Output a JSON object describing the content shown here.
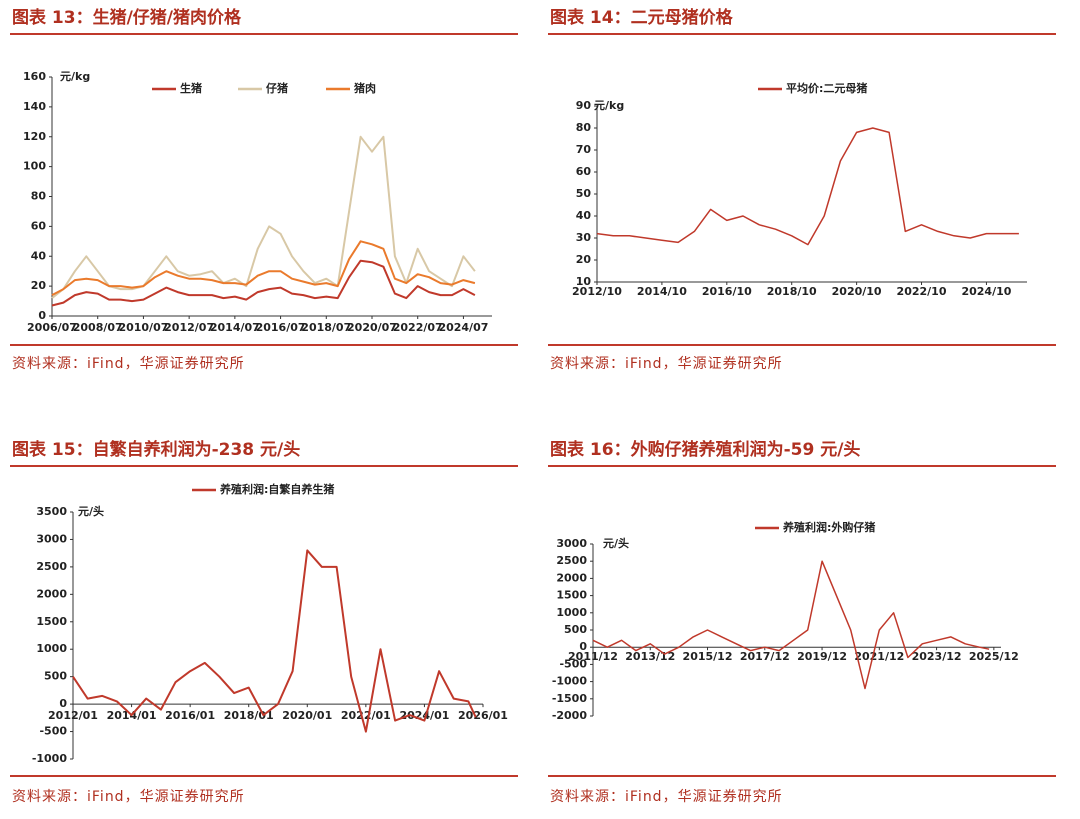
{
  "chart_data": [
    {
      "type": "line",
      "title": "图表 13：生猪/仔猪/猪肉价格",
      "unit": "元/kg",
      "source": "资料来源：iFind，华源证券研究所",
      "x": [
        "2006/07",
        "2007/01",
        "2007/07",
        "2008/01",
        "2008/07",
        "2009/01",
        "2009/07",
        "2010/01",
        "2010/07",
        "2011/01",
        "2011/07",
        "2012/01",
        "2012/07",
        "2013/01",
        "2013/07",
        "2014/01",
        "2014/07",
        "2015/01",
        "2015/07",
        "2016/01",
        "2016/07",
        "2017/01",
        "2017/07",
        "2018/01",
        "2018/07",
        "2019/01",
        "2019/07",
        "2020/01",
        "2020/07",
        "2021/01",
        "2021/07",
        "2022/01",
        "2022/07",
        "2023/01",
        "2023/07",
        "2024/01",
        "2024/07",
        "2025/01"
      ],
      "series": [
        {
          "name": "生猪",
          "color": "#c0392b",
          "values": [
            7,
            9,
            14,
            16,
            15,
            11,
            11,
            10,
            11,
            15,
            19,
            16,
            14,
            14,
            14,
            12,
            13,
            11,
            16,
            18,
            19,
            15,
            14,
            12,
            13,
            12,
            26,
            37,
            36,
            33,
            15,
            12,
            20,
            16,
            14,
            14,
            18,
            14
          ]
        },
        {
          "name": "仔猪",
          "color": "#d8c8a6",
          "values": [
            12,
            18,
            30,
            40,
            30,
            20,
            18,
            18,
            20,
            30,
            40,
            30,
            27,
            28,
            30,
            22,
            25,
            20,
            45,
            60,
            55,
            40,
            30,
            22,
            25,
            20,
            70,
            120,
            110,
            120,
            40,
            22,
            45,
            30,
            25,
            20,
            40,
            30
          ]
        },
        {
          "name": "猪肉",
          "color": "#ea7a2c",
          "values": [
            14,
            18,
            24,
            25,
            24,
            20,
            20,
            19,
            20,
            26,
            30,
            27,
            25,
            25,
            24,
            22,
            22,
            21,
            27,
            30,
            30,
            25,
            23,
            21,
            22,
            20,
            38,
            50,
            48,
            45,
            25,
            22,
            28,
            26,
            22,
            21,
            24,
            22
          ]
        }
      ],
      "xlim": [
        "2006/07",
        "2025/10"
      ],
      "xticks": [
        "2006/07",
        "2008/07",
        "2010/07",
        "2012/07",
        "2014/07",
        "2016/07",
        "2018/07",
        "2020/07",
        "2022/07",
        "2024/07"
      ],
      "ylim": [
        0,
        160
      ],
      "yticks": [
        0,
        20,
        40,
        60,
        80,
        100,
        120,
        140,
        160
      ]
    },
    {
      "type": "line",
      "title": "图表 14：二元母猪价格",
      "unit": "元/kg",
      "source": "资料来源：iFind，华源证券研究所",
      "x": [
        "2012/10",
        "2013/04",
        "2013/10",
        "2014/04",
        "2014/10",
        "2015/04",
        "2015/10",
        "2016/04",
        "2016/10",
        "2017/04",
        "2017/10",
        "2018/04",
        "2018/10",
        "2019/04",
        "2019/10",
        "2020/04",
        "2020/10",
        "2021/04",
        "2021/10",
        "2022/04",
        "2022/10",
        "2023/04",
        "2023/10",
        "2024/04",
        "2024/10",
        "2025/04",
        "2025/10"
      ],
      "series": [
        {
          "name": "平均价:二元母猪",
          "color": "#c0392b",
          "values": [
            32,
            31,
            31,
            30,
            29,
            28,
            33,
            43,
            38,
            40,
            36,
            34,
            31,
            27,
            40,
            65,
            78,
            80,
            78,
            33,
            36,
            33,
            31,
            30,
            32,
            32,
            32
          ]
        }
      ],
      "xlim": [
        "2012/10",
        "2026/01"
      ],
      "xticks": [
        "2012/10",
        "2014/10",
        "2016/10",
        "2018/10",
        "2020/10",
        "2022/10",
        "2024/10"
      ],
      "ylim": [
        10,
        90
      ],
      "yticks": [
        10,
        20,
        30,
        40,
        50,
        60,
        70,
        80,
        90
      ]
    },
    {
      "type": "line",
      "title": "图表 15：自繁自养利润为-238 元/头",
      "unit": "元/头",
      "source": "资料来源：iFind，华源证券研究所",
      "x": [
        "2012/01",
        "2012/07",
        "2013/01",
        "2013/07",
        "2014/01",
        "2014/07",
        "2015/01",
        "2015/07",
        "2016/01",
        "2016/07",
        "2017/01",
        "2017/07",
        "2018/01",
        "2018/07",
        "2019/01",
        "2019/07",
        "2020/01",
        "2020/07",
        "2021/01",
        "2021/07",
        "2022/01",
        "2022/07",
        "2023/01",
        "2023/07",
        "2024/01",
        "2024/07",
        "2025/01",
        "2025/07",
        "2025/10"
      ],
      "series": [
        {
          "name": "养殖利润:自繁自养生猪",
          "color": "#c0392b",
          "values": [
            500,
            100,
            150,
            50,
            -200,
            100,
            -100,
            400,
            600,
            750,
            500,
            200,
            300,
            -200,
            0,
            600,
            2800,
            2500,
            2500,
            500,
            -500,
            1000,
            -300,
            -200,
            -300,
            600,
            100,
            50,
            -238
          ]
        }
      ],
      "xlim": [
        "2012/01",
        "2026/01"
      ],
      "xticks": [
        "2012/01",
        "2014/01",
        "2016/01",
        "2018/01",
        "2020/01",
        "2022/01",
        "2024/01",
        "2026/01"
      ],
      "ylim": [
        -1000,
        3500
      ],
      "yticks": [
        -1000,
        -500,
        0,
        500,
        1000,
        1500,
        2000,
        2500,
        3000,
        3500
      ]
    },
    {
      "type": "line",
      "title": "图表 16：外购仔猪养殖利润为-59 元/头",
      "unit": "元/头",
      "source": "资料来源：iFind，华源证券研究所",
      "x": [
        "2011/12",
        "2012/06",
        "2012/12",
        "2013/06",
        "2013/12",
        "2014/06",
        "2014/12",
        "2015/06",
        "2015/12",
        "2016/06",
        "2016/12",
        "2017/06",
        "2017/12",
        "2018/06",
        "2018/12",
        "2019/06",
        "2019/12",
        "2020/06",
        "2020/12",
        "2021/06",
        "2021/12",
        "2022/06",
        "2022/12",
        "2023/06",
        "2023/12",
        "2024/06",
        "2024/12",
        "2025/06",
        "2025/10"
      ],
      "series": [
        {
          "name": "养殖利润:外购仔猪",
          "color": "#c0392b",
          "values": [
            200,
            0,
            200,
            -100,
            100,
            -200,
            0,
            300,
            500,
            300,
            100,
            -100,
            0,
            -100,
            200,
            500,
            2500,
            1500,
            500,
            -1200,
            500,
            1000,
            -300,
            100,
            200,
            300,
            100,
            0,
            -59
          ]
        }
      ],
      "xlim": [
        "2011/12",
        "2026/03"
      ],
      "xticks": [
        "2011/12",
        "2013/12",
        "2015/12",
        "2017/12",
        "2019/12",
        "2021/12",
        "2023/12",
        "2025/12"
      ],
      "ylim": [
        -2000,
        3000
      ],
      "yticks": [
        -2000,
        -1500,
        -1000,
        -500,
        0,
        500,
        1000,
        1500,
        2000,
        2500,
        3000
      ]
    }
  ]
}
